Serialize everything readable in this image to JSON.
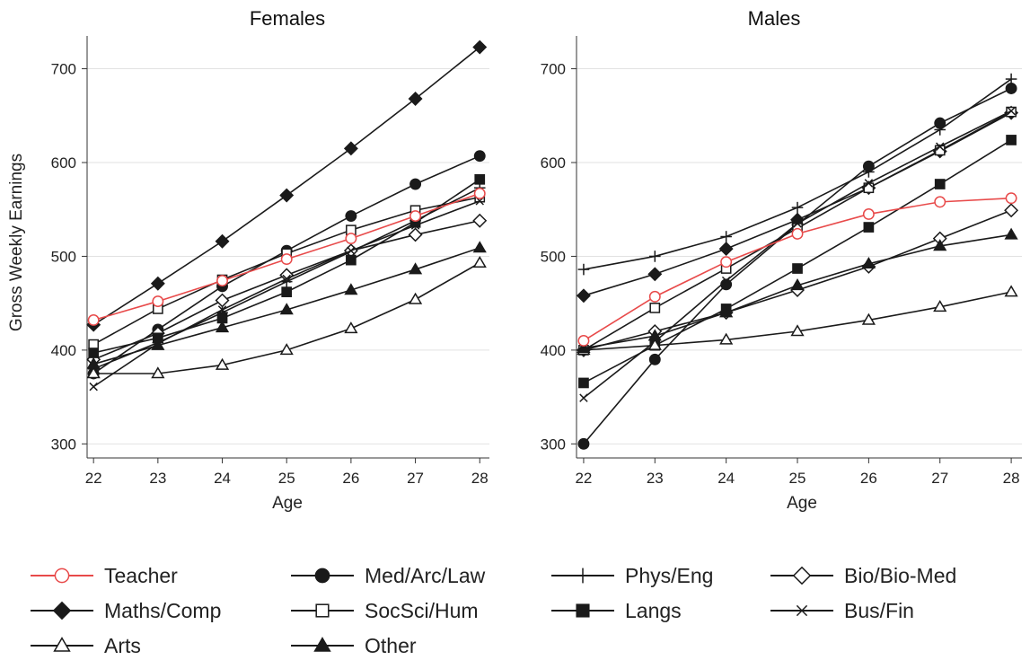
{
  "chart_data": {
    "type": "line",
    "ylabel": "Gross Weekly Earnings",
    "xlabel": "Age",
    "x": [
      22,
      23,
      24,
      25,
      26,
      27,
      28
    ],
    "xticks": [
      "22",
      "23",
      "24",
      "25",
      "26",
      "27",
      "28"
    ],
    "yticks": [
      "300",
      "400",
      "500",
      "600",
      "700"
    ],
    "ylim": [
      285,
      735
    ],
    "xlim": [
      21.9,
      28.15
    ],
    "grid": "horizontal",
    "legend_position": "bottom",
    "series_styles": [
      {
        "name": "Teacher",
        "marker": "circle-open",
        "color": "#e84a4a"
      },
      {
        "name": "Med/Arc/Law",
        "marker": "circle-filled",
        "color": "#1a1a1a"
      },
      {
        "name": "Phys/Eng",
        "marker": "plus",
        "color": "#1a1a1a"
      },
      {
        "name": "Bio/Bio-Med",
        "marker": "diamond-open",
        "color": "#1a1a1a"
      },
      {
        "name": "Maths/Comp",
        "marker": "diamond-filled",
        "color": "#1a1a1a"
      },
      {
        "name": "SocSci/Hum",
        "marker": "square-open",
        "color": "#1a1a1a"
      },
      {
        "name": "Langs",
        "marker": "square-filled",
        "color": "#1a1a1a"
      },
      {
        "name": "Bus/Fin",
        "marker": "x",
        "color": "#1a1a1a"
      },
      {
        "name": "Arts",
        "marker": "triangle-open",
        "color": "#1a1a1a"
      },
      {
        "name": "Other",
        "marker": "triangle-filled",
        "color": "#1a1a1a"
      }
    ],
    "panels": [
      {
        "title": "Females",
        "series": [
          {
            "name": "Teacher",
            "values": [
              432,
              452,
              474,
              497,
              519,
              543,
              567
            ]
          },
          {
            "name": "Med/Arc/Law",
            "values": [
              375,
              422,
              468,
              506,
              543,
              577,
              607
            ]
          },
          {
            "name": "Phys/Eng",
            "values": [
              380,
              408,
              440,
              473,
              505,
              538,
              573
            ]
          },
          {
            "name": "Bio/Bio-Med",
            "values": [
              390,
              418,
              453,
              480,
              506,
              523,
              538
            ]
          },
          {
            "name": "Maths/Comp",
            "values": [
              427,
              471,
              516,
              565,
              615,
              668,
              723
            ]
          },
          {
            "name": "SocSci/Hum",
            "values": [
              406,
              444,
              475,
              503,
              528,
              549,
              563
            ]
          },
          {
            "name": "Langs",
            "values": [
              397,
              413,
              434,
              462,
              496,
              536,
              582
            ]
          },
          {
            "name": "Bus/Fin",
            "values": [
              361,
              407,
              443,
              476,
              506,
              533,
              559
            ]
          },
          {
            "name": "Arts",
            "values": [
              375,
              375,
              384,
              400,
              423,
              454,
              493
            ]
          },
          {
            "name": "Other",
            "values": [
              385,
              405,
              424,
              443,
              464,
              486,
              509
            ]
          }
        ]
      },
      {
        "title": "Males",
        "series": [
          {
            "name": "Teacher",
            "values": [
              410,
              457,
              494,
              524,
              545,
              558,
              562
            ]
          },
          {
            "name": "Med/Arc/Law",
            "values": [
              300,
              390,
              470,
              534,
              596,
              642,
              679
            ]
          },
          {
            "name": "Phys/Eng",
            "values": [
              486,
              500,
              521,
              552,
              590,
              635,
              689
            ]
          },
          {
            "name": "Bio/Bio-Med",
            "values": [
              400,
              420,
              440,
              464,
              489,
              519,
              549
            ]
          },
          {
            "name": "Maths/Comp",
            "values": [
              458,
              481,
              508,
              539,
              573,
              612,
              653
            ]
          },
          {
            "name": "SocSci/Hum",
            "values": [
              400,
              445,
              487,
              530,
              573,
              613,
              654
            ]
          },
          {
            "name": "Langs",
            "values": [
              365,
              405,
              444,
              487,
              531,
              577,
              624
            ]
          },
          {
            "name": "Bus/Fin",
            "values": [
              349,
              409,
              474,
              535,
              578,
              617,
              655
            ]
          },
          {
            "name": "Arts",
            "values": [
              400,
              405,
              411,
              420,
              432,
              446,
              462
            ]
          },
          {
            "name": "Other",
            "values": [
              402,
              415,
              440,
              469,
              492,
              511,
              523
            ]
          }
        ]
      }
    ],
    "legend": [
      {
        "name": "Teacher",
        "marker": "circle-open",
        "color": "#e84a4a"
      },
      {
        "name": "Med/Arc/Law",
        "marker": "circle-filled",
        "color": "#1a1a1a"
      },
      {
        "name": "Phys/Eng",
        "marker": "plus",
        "color": "#1a1a1a"
      },
      {
        "name": "Bio/Bio-Med",
        "marker": "diamond-open",
        "color": "#1a1a1a"
      },
      {
        "name": "Maths/Comp",
        "marker": "diamond-filled",
        "color": "#1a1a1a"
      },
      {
        "name": "SocSci/Hum",
        "marker": "square-open",
        "color": "#1a1a1a"
      },
      {
        "name": "Langs",
        "marker": "square-filled",
        "color": "#1a1a1a"
      },
      {
        "name": "Bus/Fin",
        "marker": "x",
        "color": "#1a1a1a"
      },
      {
        "name": "Arts",
        "marker": "triangle-open",
        "color": "#1a1a1a"
      },
      {
        "name": "Other",
        "marker": "triangle-filled",
        "color": "#1a1a1a"
      }
    ]
  }
}
